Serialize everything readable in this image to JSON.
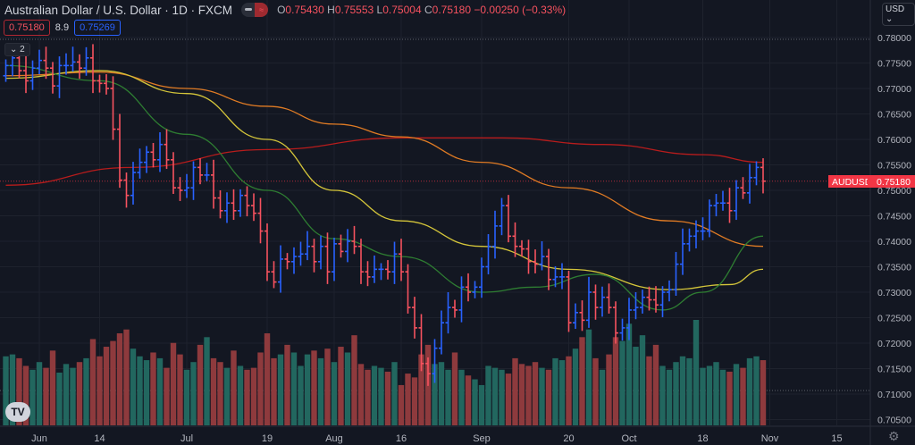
{
  "header": {
    "title": "Australian Dollar / U.S. Dollar · 1D · FXCM",
    "ohlc": {
      "o_label": "O",
      "o": "0.75430",
      "h_label": "H",
      "h": "0.75553",
      "l_label": "L",
      "l": "0.75004",
      "c_label": "C",
      "c": "0.75180",
      "change": "−0.00250 (−0.33%)"
    },
    "bid": "0.75180",
    "spread": "8.9",
    "ask": "0.75269",
    "collapse_label": "⌄ 2",
    "currency_button": "USD ⌄",
    "logo": "TV"
  },
  "colors": {
    "background": "#131722",
    "up": "#2962ff",
    "down": "#f7525f",
    "vol_up": "#22675f",
    "vol_down": "#8e3a3d",
    "ma_red": "#b71c1c",
    "ma_orange": "#e07b24",
    "ma_yellow": "#d4c53a",
    "ma_green": "#2e7d32",
    "grid": "#1e222d"
  },
  "chart_data": {
    "type": "ohlc",
    "symbol_label": "AUDUSD",
    "last_price": 0.7518,
    "last_price_label": "0.75180",
    "ylim": [
      0.703,
      0.7805
    ],
    "y_ticks": [
      "0.78000",
      "0.77500",
      "0.77000",
      "0.76500",
      "0.76000",
      "0.75500",
      "0.75000",
      "0.74500",
      "0.74000",
      "0.73500",
      "0.73000",
      "0.72500",
      "0.72000",
      "0.71500",
      "0.71000",
      "0.70500"
    ],
    "x_ticks": [
      {
        "label": "Jun",
        "date": "06-01"
      },
      {
        "label": "14",
        "date": "06-14"
      },
      {
        "label": "Jul",
        "date": "07-01"
      },
      {
        "label": "19",
        "date": "07-19"
      },
      {
        "label": "Aug",
        "date": "08-02"
      },
      {
        "label": "16",
        "date": "08-16"
      },
      {
        "label": "Sep",
        "date": "09-01"
      },
      {
        "label": "20",
        "date": "09-20"
      },
      {
        "label": "Oct",
        "date": "10-01"
      },
      {
        "label": "18",
        "date": "10-18"
      },
      {
        "label": "Nov",
        "date": "11-01"
      },
      {
        "label": "15",
        "date": "11-15"
      }
    ],
    "dates": [
      "05-25",
      "05-26",
      "05-27",
      "05-28",
      "05-31",
      "06-01",
      "06-02",
      "06-03",
      "06-04",
      "06-07",
      "06-08",
      "06-09",
      "06-10",
      "06-11",
      "06-14",
      "06-15",
      "06-16",
      "06-17",
      "06-18",
      "06-21",
      "06-22",
      "06-23",
      "06-24",
      "06-25",
      "06-28",
      "06-29",
      "06-30",
      "07-01",
      "07-02",
      "07-05",
      "07-06",
      "07-07",
      "07-08",
      "07-09",
      "07-12",
      "07-13",
      "07-14",
      "07-15",
      "07-16",
      "07-19",
      "07-20",
      "07-21",
      "07-22",
      "07-23",
      "07-26",
      "07-27",
      "07-28",
      "07-29",
      "07-30",
      "08-02",
      "08-03",
      "08-04",
      "08-05",
      "08-06",
      "08-09",
      "08-10",
      "08-11",
      "08-12",
      "08-13",
      "08-16",
      "08-17",
      "08-18",
      "08-19",
      "08-20",
      "08-23",
      "08-24",
      "08-25",
      "08-26",
      "08-27",
      "08-30",
      "08-31",
      "09-01",
      "09-02",
      "09-03",
      "09-06",
      "09-07",
      "09-08",
      "09-09",
      "09-10",
      "09-13",
      "09-14",
      "09-15",
      "09-16",
      "09-17",
      "09-20",
      "09-21",
      "09-22",
      "09-23",
      "09-24",
      "09-27",
      "09-28",
      "09-29",
      "09-30",
      "10-01",
      "10-04",
      "10-05",
      "10-06",
      "10-07",
      "10-08",
      "10-11",
      "10-12",
      "10-13",
      "10-14",
      "10-15",
      "10-18",
      "10-19",
      "10-20",
      "10-21",
      "10-22",
      "10-25",
      "10-26",
      "10-27",
      "10-28",
      "10-29"
    ],
    "close": [
      0.7745,
      0.776,
      0.7735,
      0.7715,
      0.774,
      0.7755,
      0.774,
      0.7705,
      0.7745,
      0.7745,
      0.7752,
      0.774,
      0.776,
      0.7715,
      0.771,
      0.77,
      0.762,
      0.752,
      0.749,
      0.7535,
      0.7555,
      0.7575,
      0.756,
      0.759,
      0.756,
      0.7505,
      0.75,
      0.7505,
      0.7545,
      0.753,
      0.753,
      0.7485,
      0.746,
      0.7475,
      0.746,
      0.749,
      0.747,
      0.7455,
      0.742,
      0.734,
      0.732,
      0.7365,
      0.736,
      0.737,
      0.7375,
      0.739,
      0.736,
      0.739,
      0.734,
      0.7395,
      0.738,
      0.74,
      0.739,
      0.734,
      0.733,
      0.7345,
      0.7345,
      0.734,
      0.7375,
      0.734,
      0.727,
      0.723,
      0.716,
      0.714,
      0.719,
      0.724,
      0.727,
      0.7265,
      0.731,
      0.73,
      0.731,
      0.735,
      0.739,
      0.743,
      0.747,
      0.741,
      0.739,
      0.7385,
      0.736,
      0.7355,
      0.737,
      0.7325,
      0.733,
      0.733,
      0.724,
      0.726,
      0.7245,
      0.73,
      0.727,
      0.729,
      0.727,
      0.722,
      0.723,
      0.7265,
      0.727,
      0.729,
      0.7285,
      0.7275,
      0.73,
      0.7305,
      0.7355,
      0.7395,
      0.741,
      0.742,
      0.742,
      0.747,
      0.7475,
      0.7475,
      0.746,
      0.7505,
      0.7495,
      0.7525,
      0.7545,
      0.7518
    ],
    "first_open": 0.7725,
    "volume": [
      72,
      74,
      70,
      62,
      58,
      66,
      60,
      78,
      55,
      64,
      60,
      66,
      70,
      90,
      72,
      82,
      88,
      96,
      100,
      80,
      72,
      68,
      76,
      70,
      60,
      86,
      74,
      58,
      66,
      84,
      92,
      70,
      66,
      60,
      78,
      62,
      58,
      60,
      76,
      96,
      70,
      74,
      84,
      76,
      62,
      74,
      78,
      70,
      80,
      66,
      82,
      76,
      94,
      64,
      58,
      62,
      60,
      56,
      66,
      42,
      54,
      50,
      74,
      84,
      64,
      66,
      58,
      76,
      58,
      52,
      48,
      42,
      62,
      60,
      58,
      54,
      70,
      64,
      62,
      66,
      60,
      58,
      70,
      68,
      72,
      80,
      92,
      100,
      70,
      58,
      74,
      92,
      88,
      106,
      82,
      94,
      72,
      84,
      62,
      58,
      66,
      72,
      70,
      110,
      60,
      62,
      66,
      58,
      56,
      64,
      60,
      70,
      72,
      68
    ],
    "moving_averages": [
      {
        "color_key": "ma_red",
        "points": [
          [
            "05-25",
            0.751
          ],
          [
            "06-21",
            0.7545
          ],
          [
            "07-19",
            0.758
          ],
          [
            "08-16",
            0.7603
          ],
          [
            "09-06",
            0.7603
          ],
          [
            "09-27",
            0.759
          ],
          [
            "10-18",
            0.757
          ],
          [
            "10-29",
            0.7555
          ]
        ]
      },
      {
        "color_key": "ma_orange",
        "points": [
          [
            "05-25",
            0.7725
          ],
          [
            "06-14",
            0.7732
          ],
          [
            "07-01",
            0.77
          ],
          [
            "07-19",
            0.7665
          ],
          [
            "08-02",
            0.763
          ],
          [
            "08-16",
            0.7605
          ],
          [
            "09-01",
            0.7555
          ],
          [
            "09-20",
            0.7505
          ],
          [
            "10-11",
            0.744
          ],
          [
            "10-29",
            0.739
          ]
        ]
      },
      {
        "color_key": "ma_yellow",
        "points": [
          [
            "05-25",
            0.772
          ],
          [
            "06-14",
            0.7735
          ],
          [
            "07-01",
            0.769
          ],
          [
            "07-19",
            0.76
          ],
          [
            "08-02",
            0.75
          ],
          [
            "08-16",
            0.744
          ],
          [
            "09-01",
            0.739
          ],
          [
            "09-20",
            0.7345
          ],
          [
            "10-11",
            0.7305
          ],
          [
            "10-22",
            0.7315
          ],
          [
            "10-29",
            0.7345
          ]
        ]
      },
      {
        "color_key": "ma_green",
        "points": [
          [
            "05-25",
            0.7745
          ],
          [
            "06-14",
            0.7715
          ],
          [
            "07-01",
            0.761
          ],
          [
            "07-19",
            0.75
          ],
          [
            "08-02",
            0.7405
          ],
          [
            "08-16",
            0.737
          ],
          [
            "09-01",
            0.73
          ],
          [
            "09-13",
            0.731
          ],
          [
            "09-24",
            0.7335
          ],
          [
            "10-08",
            0.7265
          ],
          [
            "10-18",
            0.73
          ],
          [
            "10-29",
            0.741
          ]
        ]
      }
    ],
    "grid": true
  }
}
